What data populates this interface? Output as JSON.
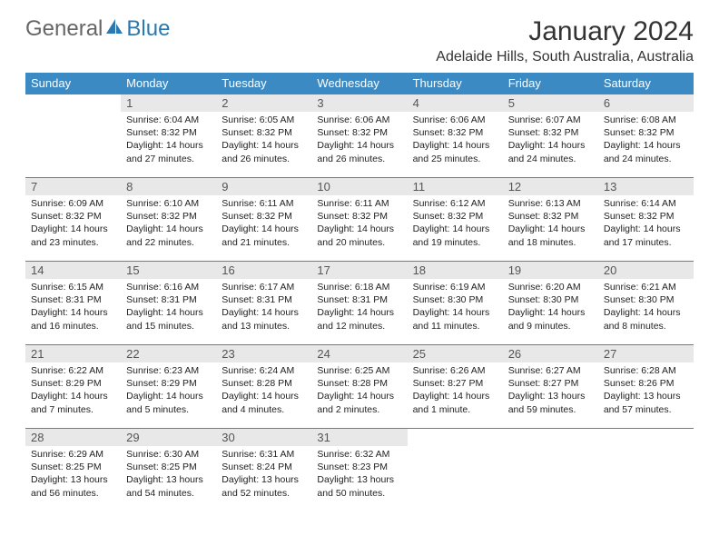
{
  "logo": {
    "part1": "General",
    "part2": "Blue"
  },
  "title": "January 2024",
  "location": "Adelaide Hills, South Australia, Australia",
  "colors": {
    "header_bg": "#3b8ac4",
    "header_text": "#ffffff",
    "daynum_bg": "#e8e8e8",
    "row_border": "#3b8ac4",
    "logo_gray": "#666666",
    "logo_blue": "#2a7ab0"
  },
  "weekdays": [
    "Sunday",
    "Monday",
    "Tuesday",
    "Wednesday",
    "Thursday",
    "Friday",
    "Saturday"
  ],
  "weeks": [
    [
      {
        "n": "",
        "r": "",
        "s": "",
        "d": ""
      },
      {
        "n": "1",
        "r": "Sunrise: 6:04 AM",
        "s": "Sunset: 8:32 PM",
        "d": "Daylight: 14 hours and 27 minutes."
      },
      {
        "n": "2",
        "r": "Sunrise: 6:05 AM",
        "s": "Sunset: 8:32 PM",
        "d": "Daylight: 14 hours and 26 minutes."
      },
      {
        "n": "3",
        "r": "Sunrise: 6:06 AM",
        "s": "Sunset: 8:32 PM",
        "d": "Daylight: 14 hours and 26 minutes."
      },
      {
        "n": "4",
        "r": "Sunrise: 6:06 AM",
        "s": "Sunset: 8:32 PM",
        "d": "Daylight: 14 hours and 25 minutes."
      },
      {
        "n": "5",
        "r": "Sunrise: 6:07 AM",
        "s": "Sunset: 8:32 PM",
        "d": "Daylight: 14 hours and 24 minutes."
      },
      {
        "n": "6",
        "r": "Sunrise: 6:08 AM",
        "s": "Sunset: 8:32 PM",
        "d": "Daylight: 14 hours and 24 minutes."
      }
    ],
    [
      {
        "n": "7",
        "r": "Sunrise: 6:09 AM",
        "s": "Sunset: 8:32 PM",
        "d": "Daylight: 14 hours and 23 minutes."
      },
      {
        "n": "8",
        "r": "Sunrise: 6:10 AM",
        "s": "Sunset: 8:32 PM",
        "d": "Daylight: 14 hours and 22 minutes."
      },
      {
        "n": "9",
        "r": "Sunrise: 6:11 AM",
        "s": "Sunset: 8:32 PM",
        "d": "Daylight: 14 hours and 21 minutes."
      },
      {
        "n": "10",
        "r": "Sunrise: 6:11 AM",
        "s": "Sunset: 8:32 PM",
        "d": "Daylight: 14 hours and 20 minutes."
      },
      {
        "n": "11",
        "r": "Sunrise: 6:12 AM",
        "s": "Sunset: 8:32 PM",
        "d": "Daylight: 14 hours and 19 minutes."
      },
      {
        "n": "12",
        "r": "Sunrise: 6:13 AM",
        "s": "Sunset: 8:32 PM",
        "d": "Daylight: 14 hours and 18 minutes."
      },
      {
        "n": "13",
        "r": "Sunrise: 6:14 AM",
        "s": "Sunset: 8:32 PM",
        "d": "Daylight: 14 hours and 17 minutes."
      }
    ],
    [
      {
        "n": "14",
        "r": "Sunrise: 6:15 AM",
        "s": "Sunset: 8:31 PM",
        "d": "Daylight: 14 hours and 16 minutes."
      },
      {
        "n": "15",
        "r": "Sunrise: 6:16 AM",
        "s": "Sunset: 8:31 PM",
        "d": "Daylight: 14 hours and 15 minutes."
      },
      {
        "n": "16",
        "r": "Sunrise: 6:17 AM",
        "s": "Sunset: 8:31 PM",
        "d": "Daylight: 14 hours and 13 minutes."
      },
      {
        "n": "17",
        "r": "Sunrise: 6:18 AM",
        "s": "Sunset: 8:31 PM",
        "d": "Daylight: 14 hours and 12 minutes."
      },
      {
        "n": "18",
        "r": "Sunrise: 6:19 AM",
        "s": "Sunset: 8:30 PM",
        "d": "Daylight: 14 hours and 11 minutes."
      },
      {
        "n": "19",
        "r": "Sunrise: 6:20 AM",
        "s": "Sunset: 8:30 PM",
        "d": "Daylight: 14 hours and 9 minutes."
      },
      {
        "n": "20",
        "r": "Sunrise: 6:21 AM",
        "s": "Sunset: 8:30 PM",
        "d": "Daylight: 14 hours and 8 minutes."
      }
    ],
    [
      {
        "n": "21",
        "r": "Sunrise: 6:22 AM",
        "s": "Sunset: 8:29 PM",
        "d": "Daylight: 14 hours and 7 minutes."
      },
      {
        "n": "22",
        "r": "Sunrise: 6:23 AM",
        "s": "Sunset: 8:29 PM",
        "d": "Daylight: 14 hours and 5 minutes."
      },
      {
        "n": "23",
        "r": "Sunrise: 6:24 AM",
        "s": "Sunset: 8:28 PM",
        "d": "Daylight: 14 hours and 4 minutes."
      },
      {
        "n": "24",
        "r": "Sunrise: 6:25 AM",
        "s": "Sunset: 8:28 PM",
        "d": "Daylight: 14 hours and 2 minutes."
      },
      {
        "n": "25",
        "r": "Sunrise: 6:26 AM",
        "s": "Sunset: 8:27 PM",
        "d": "Daylight: 14 hours and 1 minute."
      },
      {
        "n": "26",
        "r": "Sunrise: 6:27 AM",
        "s": "Sunset: 8:27 PM",
        "d": "Daylight: 13 hours and 59 minutes."
      },
      {
        "n": "27",
        "r": "Sunrise: 6:28 AM",
        "s": "Sunset: 8:26 PM",
        "d": "Daylight: 13 hours and 57 minutes."
      }
    ],
    [
      {
        "n": "28",
        "r": "Sunrise: 6:29 AM",
        "s": "Sunset: 8:25 PM",
        "d": "Daylight: 13 hours and 56 minutes."
      },
      {
        "n": "29",
        "r": "Sunrise: 6:30 AM",
        "s": "Sunset: 8:25 PM",
        "d": "Daylight: 13 hours and 54 minutes."
      },
      {
        "n": "30",
        "r": "Sunrise: 6:31 AM",
        "s": "Sunset: 8:24 PM",
        "d": "Daylight: 13 hours and 52 minutes."
      },
      {
        "n": "31",
        "r": "Sunrise: 6:32 AM",
        "s": "Sunset: 8:23 PM",
        "d": "Daylight: 13 hours and 50 minutes."
      },
      {
        "n": "",
        "r": "",
        "s": "",
        "d": ""
      },
      {
        "n": "",
        "r": "",
        "s": "",
        "d": ""
      },
      {
        "n": "",
        "r": "",
        "s": "",
        "d": ""
      }
    ]
  ]
}
